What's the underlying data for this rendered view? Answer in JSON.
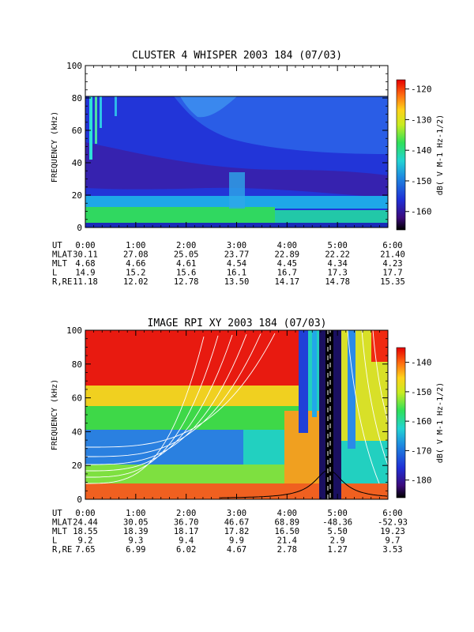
{
  "chart_data": [
    {
      "type": "heatmap",
      "title": "CLUSTER 4 WHISPER 2003 184 (07/03)",
      "ylabel": "FREQUENCY (kHz)",
      "ylim": [
        0,
        100
      ],
      "y_ticks": [
        "0",
        "20",
        "40",
        "60",
        "80",
        "100"
      ],
      "x_ticks": [
        "0:00",
        "1:00",
        "2:00",
        "3:00",
        "4:00",
        "5:00",
        "6:00"
      ],
      "data_ceiling_khz": 80,
      "colorbar": {
        "label": "dB( V M-1 Hz-1/2)",
        "range": [
          -166,
          -117
        ],
        "ticks": [
          "-120",
          "-130",
          "-140",
          "-150",
          "-160"
        ]
      },
      "ephemeris": [
        {
          "label": "UT",
          "values": [
            "0:00",
            "1:00",
            "2:00",
            "3:00",
            "4:00",
            "5:00",
            "6:00"
          ]
        },
        {
          "label": "MLAT",
          "values": [
            "30.11",
            "27.08",
            "25.05",
            "23.77",
            "22.89",
            "22.22",
            "21.40"
          ]
        },
        {
          "label": "MLT",
          "values": [
            "4.68",
            "4.66",
            "4.61",
            "4.54",
            "4.45",
            "4.34",
            "4.23"
          ]
        },
        {
          "label": "L",
          "values": [
            "14.9",
            "15.2",
            "15.6",
            "16.1",
            "16.7",
            "17.3",
            "17.7"
          ]
        },
        {
          "label": "R,RE",
          "values": [
            "11.18",
            "12.02",
            "12.78",
            "13.50",
            "14.17",
            "14.78",
            "15.35"
          ]
        }
      ]
    },
    {
      "type": "heatmap",
      "title": "IMAGE RPI XY 2003 184 (07/03)",
      "ylabel": "FREQUENCY (kHz)",
      "ylim": [
        0,
        100
      ],
      "y_ticks": [
        "0",
        "20",
        "40",
        "60",
        "80",
        "100"
      ],
      "x_ticks": [
        "0:00",
        "1:00",
        "2:00",
        "3:00",
        "4:00",
        "5:00",
        "6:00"
      ],
      "colorbar": {
        "label": "dB( V M-1 Hz-1/2)",
        "range": [
          -186,
          -135
        ],
        "ticks": [
          "-140",
          "-150",
          "-160",
          "-170",
          "-180"
        ]
      },
      "ephemeris": [
        {
          "label": "UT",
          "values": [
            "0:00",
            "1:00",
            "2:00",
            "3:00",
            "4:00",
            "5:00",
            "6:00"
          ]
        },
        {
          "label": "MLAT",
          "values": [
            "24.44",
            "30.05",
            "36.70",
            "46.67",
            "68.89",
            "-48.36",
            "-52.93"
          ]
        },
        {
          "label": "MLT",
          "values": [
            "18.55",
            "18.39",
            "18.17",
            "17.82",
            "16.50",
            "5.50",
            "19.23"
          ]
        },
        {
          "label": "L",
          "values": [
            "9.2",
            "9.3",
            "9.4",
            "9.9",
            "21.4",
            "2.9",
            "9.7"
          ]
        },
        {
          "label": "R,RE",
          "values": [
            "7.65",
            "6.99",
            "6.02",
            "4.67",
            "2.78",
            "1.27",
            "3.53"
          ]
        }
      ]
    }
  ]
}
